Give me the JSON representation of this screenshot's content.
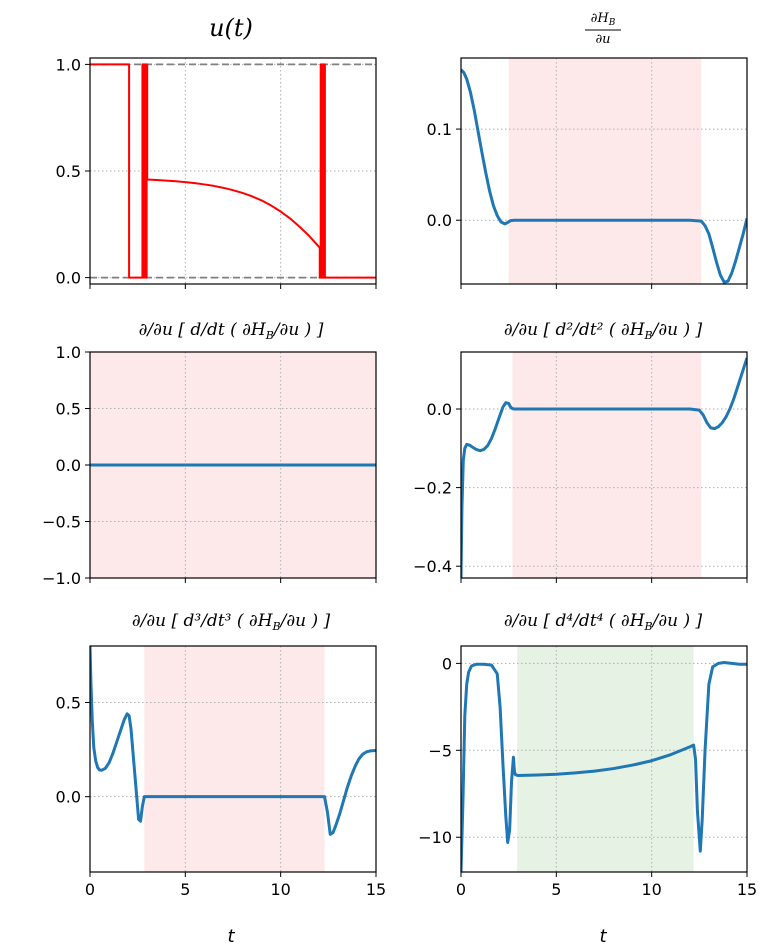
{
  "chart_data": [
    {
      "id": "p1",
      "type": "line",
      "title": "u(t)",
      "xlabel": "",
      "ylabel": "",
      "xlim": [
        0,
        15
      ],
      "ylim": [
        -0.03,
        1.03
      ],
      "xticks": [
        0,
        5,
        10,
        15
      ],
      "yticks": [
        0.0,
        0.5,
        1.0
      ],
      "ytick_labels": [
        "0.0",
        "0.5",
        "1.0"
      ],
      "xtick_labels_visible": false,
      "grid": true,
      "color": "#ff0000",
      "reference_lines": [
        0.0,
        1.0
      ],
      "series": [
        {
          "x": [
            0,
            2.05,
            2.05,
            2.75,
            2.75,
            2.82,
            2.82,
            2.86,
            2.86,
            2.92,
            2.92,
            2.97,
            2.97,
            3.0,
            3.0,
            3.5,
            4.0,
            4.5,
            5.0,
            5.5,
            6.0,
            6.5,
            7.0,
            7.5,
            8.0,
            8.5,
            9.0,
            9.5,
            10.0,
            10.5,
            11.0,
            11.5,
            12.0,
            12.05,
            12.05,
            12.1,
            12.1,
            12.14,
            12.14,
            12.18,
            12.18,
            12.22,
            12.22,
            12.27,
            12.27,
            12.32,
            12.32,
            15
          ],
          "y": [
            1.0,
            1.0,
            0.0,
            0.0,
            1.0,
            1.0,
            0.0,
            0.0,
            1.0,
            1.0,
            0.0,
            0.0,
            1.0,
            1.0,
            0.46,
            0.458,
            0.455,
            0.452,
            0.448,
            0.443,
            0.437,
            0.43,
            0.421,
            0.41,
            0.397,
            0.381,
            0.362,
            0.338,
            0.31,
            0.277,
            0.238,
            0.195,
            0.145,
            0.14,
            0.0,
            0.0,
            1.0,
            1.0,
            0.0,
            0.0,
            1.0,
            1.0,
            0.0,
            0.0,
            1.0,
            1.0,
            0.0,
            0.0
          ]
        }
      ]
    },
    {
      "id": "p2",
      "type": "line",
      "title": "∂H_B/∂u",
      "xlabel": "",
      "ylabel": "",
      "xlim": [
        0,
        15
      ],
      "ylim": [
        -0.07,
        0.178
      ],
      "xticks": [
        0,
        5,
        10,
        15
      ],
      "yticks": [
        0.0,
        0.1
      ],
      "ytick_labels": [
        "0.0",
        "0.1"
      ],
      "xtick_labels_visible": false,
      "grid": true,
      "color": "#1f77b4",
      "span": {
        "from": 2.5,
        "to": 12.6,
        "color": "#fde8ea"
      },
      "series": [
        {
          "x": [
            0.0,
            0.15,
            0.3,
            0.5,
            0.7,
            0.9,
            1.1,
            1.3,
            1.5,
            1.7,
            1.9,
            2.1,
            2.3,
            2.45,
            2.6,
            2.8,
            3.0,
            4.0,
            6.0,
            8.0,
            10.0,
            12.0,
            12.6,
            12.8,
            13.0,
            13.2,
            13.4,
            13.6,
            13.8,
            14.0,
            14.2,
            14.4,
            14.6,
            14.8,
            15.0
          ],
          "y": [
            0.165,
            0.162,
            0.155,
            0.14,
            0.12,
            0.097,
            0.074,
            0.052,
            0.032,
            0.016,
            0.005,
            -0.002,
            -0.004,
            -0.0025,
            -0.0005,
            0.0,
            0.0,
            0.0,
            0.0,
            0.0,
            0.0,
            0.0,
            -0.001,
            -0.006,
            -0.015,
            -0.03,
            -0.046,
            -0.06,
            -0.068,
            -0.067,
            -0.058,
            -0.045,
            -0.03,
            -0.015,
            0.002
          ]
        }
      ]
    },
    {
      "id": "p3",
      "type": "line",
      "title": "∂/∂u [d/dt (∂H_B/∂u)]",
      "xlabel": "",
      "ylabel": "",
      "xlim": [
        0,
        15
      ],
      "ylim": [
        -1.0,
        1.0
      ],
      "xticks": [
        0,
        5,
        10,
        15
      ],
      "yticks": [
        -1.0,
        -0.5,
        0.0,
        0.5,
        1.0
      ],
      "ytick_labels": [
        "−1.0",
        "−0.5",
        "0.0",
        "0.5",
        "1.0"
      ],
      "xtick_labels_visible": false,
      "grid": true,
      "color": "#1f77b4",
      "span": {
        "from": 0,
        "to": 15,
        "color": "#fde8ea"
      },
      "series": [
        {
          "x": [
            0,
            15
          ],
          "y": [
            0,
            0
          ]
        }
      ]
    },
    {
      "id": "p4",
      "type": "line",
      "title": "∂/∂u [d²/dt² (∂H_B/∂u)]",
      "xlabel": "",
      "ylabel": "",
      "xlim": [
        0,
        15
      ],
      "ylim": [
        -0.43,
        0.145
      ],
      "xticks": [
        0,
        5,
        10,
        15
      ],
      "yticks": [
        -0.4,
        -0.2,
        0.0
      ],
      "ytick_labels": [
        "−0.4",
        "−0.2",
        "0.0"
      ],
      "xtick_labels_visible": false,
      "grid": true,
      "color": "#1f77b4",
      "span": {
        "from": 2.7,
        "to": 12.6,
        "color": "#fde8ea"
      },
      "series": [
        {
          "x": [
            0.0,
            0.05,
            0.12,
            0.2,
            0.3,
            0.45,
            0.6,
            0.8,
            1.0,
            1.2,
            1.4,
            1.6,
            1.8,
            2.0,
            2.2,
            2.35,
            2.5,
            2.6,
            2.7,
            2.8,
            3.0,
            4.0,
            6.0,
            8.0,
            10.0,
            12.0,
            12.5,
            12.7,
            12.9,
            13.1,
            13.3,
            13.5,
            13.7,
            13.9,
            14.1,
            14.3,
            14.5,
            14.7,
            15.0
          ],
          "y": [
            -0.43,
            -0.25,
            -0.13,
            -0.1,
            -0.09,
            -0.092,
            -0.097,
            -0.103,
            -0.106,
            -0.103,
            -0.093,
            -0.075,
            -0.05,
            -0.022,
            0.005,
            0.016,
            0.014,
            0.005,
            0.001,
            0.0,
            0.0,
            0.0,
            0.0,
            0.0,
            0.0,
            0.0,
            -0.003,
            -0.015,
            -0.035,
            -0.048,
            -0.05,
            -0.045,
            -0.035,
            -0.02,
            0.0,
            0.025,
            0.055,
            0.085,
            0.13
          ]
        }
      ]
    },
    {
      "id": "p5",
      "type": "line",
      "title": "∂/∂u [d³/dt³ (∂H_B/∂u)]",
      "xlabel": "t",
      "ylabel": "",
      "xlim": [
        0,
        15
      ],
      "ylim": [
        -0.4,
        0.8
      ],
      "xticks": [
        0,
        5,
        10,
        15
      ],
      "xtick_labels": [
        "0",
        "5",
        "10",
        "15"
      ],
      "yticks": [
        0.0,
        0.5
      ],
      "ytick_labels": [
        "0.0",
        "0.5"
      ],
      "xtick_labels_visible": true,
      "grid": true,
      "color": "#1f77b4",
      "span": {
        "from": 2.85,
        "to": 12.3,
        "color": "#fde8ea"
      },
      "series": [
        {
          "x": [
            0.0,
            0.05,
            0.12,
            0.2,
            0.3,
            0.4,
            0.5,
            0.6,
            0.8,
            1.0,
            1.2,
            1.4,
            1.6,
            1.8,
            1.95,
            2.05,
            2.15,
            2.3,
            2.45,
            2.55,
            2.65,
            2.75,
            2.85,
            3.0,
            4.0,
            6.0,
            8.0,
            10.0,
            12.0,
            12.3,
            12.45,
            12.6,
            12.75,
            12.9,
            13.1,
            13.3,
            13.5,
            13.7,
            13.9,
            14.1,
            14.3,
            14.5,
            14.7,
            15.0
          ],
          "y": [
            0.8,
            0.6,
            0.4,
            0.26,
            0.19,
            0.155,
            0.142,
            0.14,
            0.15,
            0.18,
            0.23,
            0.29,
            0.35,
            0.41,
            0.44,
            0.43,
            0.36,
            0.18,
            0.0,
            -0.12,
            -0.13,
            -0.05,
            0.0,
            0.0,
            0.0,
            0.0,
            0.0,
            0.0,
            0.0,
            0.0,
            -0.08,
            -0.2,
            -0.19,
            -0.15,
            -0.09,
            -0.02,
            0.05,
            0.11,
            0.16,
            0.2,
            0.225,
            0.238,
            0.243,
            0.245
          ]
        }
      ]
    },
    {
      "id": "p6",
      "type": "line",
      "title": "∂/∂u [d⁴/dt⁴ (∂H_B/∂u)]",
      "xlabel": "t",
      "ylabel": "",
      "xlim": [
        0,
        15
      ],
      "ylim": [
        -12.0,
        1.0
      ],
      "xticks": [
        0,
        5,
        10,
        15
      ],
      "xtick_labels": [
        "0",
        "5",
        "10",
        "15"
      ],
      "yticks": [
        -10,
        -5,
        0
      ],
      "ytick_labels": [
        "−10",
        "−5",
        "0"
      ],
      "xtick_labels_visible": true,
      "grid": true,
      "color": "#1f77b4",
      "span": {
        "from": 2.95,
        "to": 12.2,
        "color": "#e6f2e4"
      },
      "series": [
        {
          "x": [
            0.0,
            0.1,
            0.2,
            0.3,
            0.4,
            0.55,
            0.8,
            1.2,
            1.6,
            1.9,
            2.05,
            2.2,
            2.35,
            2.45,
            2.55,
            2.65,
            2.75,
            2.8,
            2.85,
            3.0,
            4.0,
            5.0,
            6.0,
            7.0,
            8.0,
            9.0,
            10.0,
            11.0,
            12.0,
            12.2,
            12.3,
            12.4,
            12.55,
            12.65,
            12.8,
            13.0,
            13.2,
            13.5,
            13.8,
            14.2,
            14.6,
            15.0
          ],
          "y": [
            -12.0,
            -8.0,
            -3.0,
            -1.2,
            -0.5,
            -0.15,
            -0.05,
            -0.05,
            -0.1,
            -0.6,
            -2.5,
            -5.8,
            -8.8,
            -10.3,
            -9.6,
            -6.8,
            -5.4,
            -6.2,
            -6.4,
            -6.45,
            -6.42,
            -6.38,
            -6.3,
            -6.2,
            -6.05,
            -5.85,
            -5.6,
            -5.25,
            -4.8,
            -4.7,
            -5.5,
            -8.5,
            -10.8,
            -9.0,
            -5.0,
            -1.2,
            -0.2,
            0.0,
            0.05,
            0.0,
            -0.05,
            -0.05
          ]
        }
      ]
    }
  ]
}
